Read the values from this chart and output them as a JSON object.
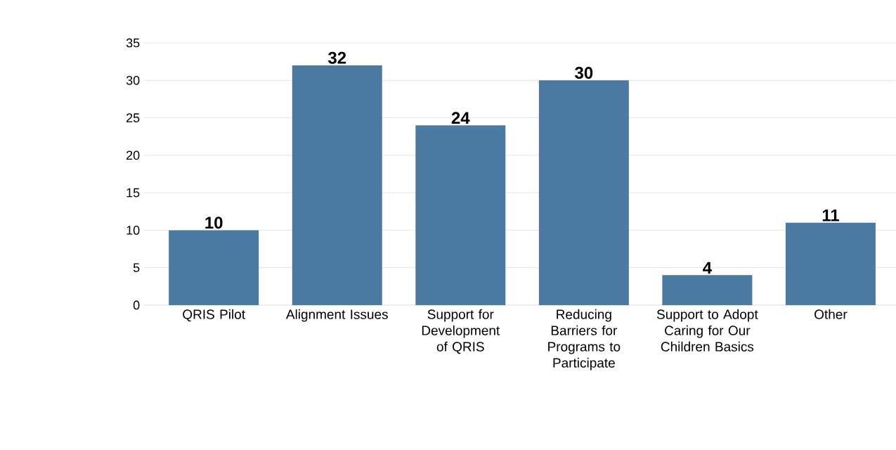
{
  "chart_data": {
    "type": "bar",
    "categories": [
      "QRIS Pilot",
      "Alignment Issues",
      "Support for Development of QRIS",
      "Reducing Barriers for Programs to Participate",
      "Support to Adopt Caring for Our Children Basics",
      "Other"
    ],
    "values": [
      10,
      32,
      24,
      30,
      4,
      11
    ],
    "color": "#4a7aa2",
    "ylim": [
      0,
      35
    ],
    "yticks": [
      0,
      5,
      10,
      15,
      20,
      25,
      30,
      35
    ],
    "grid": "y",
    "data_labels": true
  }
}
